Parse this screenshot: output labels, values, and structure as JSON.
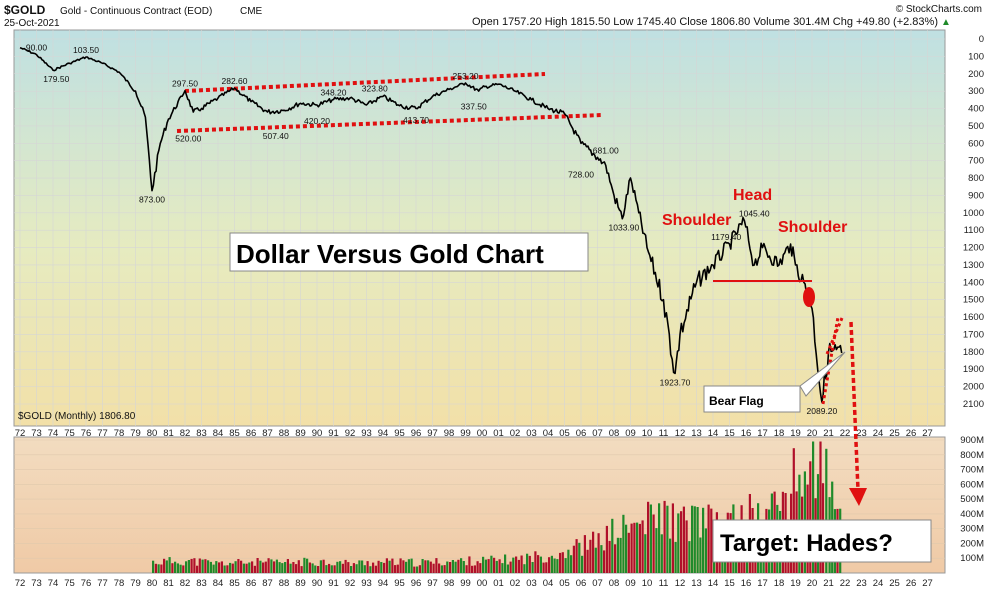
{
  "header": {
    "symbol": "$GOLD",
    "description": "Gold - Continuous Contract (EOD)",
    "exchange": "CME",
    "date": "25-Oct-2021",
    "watermark": "© StockCharts.com",
    "quote": "Open 1757.20  High 1815.50  Low 1745.40  Close 1806.80  Volume 301.4M  Chg +49.80 (+2.83%)",
    "quote_arrow": "▲"
  },
  "legend": {
    "label": "$GOLD (Monthly) 1806.80"
  },
  "annotations": {
    "title_box": "Dollar Versus Gold Chart",
    "head": "Head",
    "shoulder_left": "Shoulder",
    "shoulder_right": "Shoulder",
    "bear_flag": "Bear Flag",
    "target": "Target: Hades?"
  },
  "colors": {
    "price_line": "#000000",
    "trend_red": "#e01010",
    "vol_up": "#1f8a2a",
    "vol_down": "#b0102a",
    "panel_top_a": "#bfe0e0",
    "panel_top_b": "#f0e0a8",
    "vol_bg": "#f2d6b4"
  },
  "chart_data": {
    "type": "line",
    "series_inverted": true,
    "x_ticks": [
      "72",
      "73",
      "74",
      "75",
      "76",
      "77",
      "78",
      "79",
      "80",
      "81",
      "82",
      "83",
      "84",
      "85",
      "86",
      "87",
      "88",
      "89",
      "90",
      "91",
      "92",
      "93",
      "94",
      "95",
      "96",
      "97",
      "98",
      "99",
      "00",
      "01",
      "02",
      "03",
      "04",
      "05",
      "06",
      "07",
      "08",
      "09",
      "10",
      "11",
      "12",
      "13",
      "14",
      "15",
      "16",
      "17",
      "18",
      "19",
      "20",
      "21",
      "22",
      "23",
      "24",
      "25",
      "26",
      "27"
    ],
    "y_ticks": [
      0,
      100,
      200,
      300,
      400,
      500,
      600,
      700,
      800,
      900,
      1000,
      1100,
      1200,
      1300,
      1400,
      1500,
      1600,
      1700,
      1800,
      1900,
      2000,
      2100
    ],
    "ylim": [
      0,
      2200
    ],
    "price": [
      [
        1972.0,
        50
      ],
      [
        1973.0,
        90
      ],
      [
        1974.0,
        179.5
      ],
      [
        1975.0,
        140
      ],
      [
        1976.0,
        103.5
      ],
      [
        1977.0,
        140
      ],
      [
        1978.0,
        190
      ],
      [
        1979.0,
        300
      ],
      [
        1979.6,
        450
      ],
      [
        1980.0,
        873
      ],
      [
        1980.5,
        600
      ],
      [
        1981.0,
        460
      ],
      [
        1982.0,
        297.5
      ],
      [
        1982.5,
        420
      ],
      [
        1983.0,
        400
      ],
      [
        1984.0,
        340
      ],
      [
        1985.0,
        282.6
      ],
      [
        1986.0,
        360
      ],
      [
        1987.0,
        420
      ],
      [
        1988.0,
        410
      ],
      [
        1989.0,
        370
      ],
      [
        1990.0,
        380
      ],
      [
        1991.0,
        348.2
      ],
      [
        1992.0,
        340
      ],
      [
        1993.0,
        380
      ],
      [
        1994.0,
        330
      ],
      [
        1995.0,
        383.7
      ],
      [
        1996.0,
        400
      ],
      [
        1997.0,
        330
      ],
      [
        1998.0,
        290
      ],
      [
        1999.0,
        253.2
      ],
      [
        1999.8,
        300
      ],
      [
        2000.0,
        280
      ],
      [
        2001.0,
        260
      ],
      [
        2002.0,
        300
      ],
      [
        2003.0,
        350
      ],
      [
        2004.0,
        400
      ],
      [
        2005.0,
        430
      ],
      [
        2006.0,
        600
      ],
      [
        2007.0,
        681
      ],
      [
        2007.5,
        728
      ],
      [
        2008.0,
        900
      ],
      [
        2008.5,
        1033.9
      ],
      [
        2009.0,
        800
      ],
      [
        2009.5,
        1000
      ],
      [
        2010.0,
        1200
      ],
      [
        2011.0,
        1500
      ],
      [
        2011.7,
        1923.7
      ],
      [
        2012.0,
        1700
      ],
      [
        2013.0,
        1400
      ],
      [
        2014.0,
        1300
      ],
      [
        2015.0,
        1179.4
      ],
      [
        2015.9,
        1045.4
      ],
      [
        2016.5,
        1300
      ],
      [
        2017.0,
        1200
      ],
      [
        2018.0,
        1300
      ],
      [
        2018.7,
        1180
      ],
      [
        2019.0,
        1300
      ],
      [
        2019.5,
        1400
      ],
      [
        2020.0,
        1550
      ],
      [
        2020.6,
        2089.2
      ],
      [
        2021.0,
        1800
      ],
      [
        2021.8,
        1806.8
      ]
    ],
    "point_labels": [
      {
        "text": "90.00",
        "x": 1973.0,
        "y": 90
      },
      {
        "text": "179.50",
        "x": 1974.2,
        "y": 179.5
      },
      {
        "text": "103.50",
        "x": 1976.0,
        "y": 103.5
      },
      {
        "text": "873.00",
        "x": 1980.0,
        "y": 873
      },
      {
        "text": "297.50",
        "x": 1982.0,
        "y": 297.5
      },
      {
        "text": "520.00",
        "x": 1982.2,
        "y": 520
      },
      {
        "text": "282.60",
        "x": 1985.0,
        "y": 282.6
      },
      {
        "text": "507.40",
        "x": 1987.5,
        "y": 507.4
      },
      {
        "text": "348.20",
        "x": 1991.0,
        "y": 348.2
      },
      {
        "text": "420.20",
        "x": 1990.0,
        "y": 420.2
      },
      {
        "text": "323.80",
        "x": 1993.5,
        "y": 323.8
      },
      {
        "text": "413.70",
        "x": 1996.0,
        "y": 413.7
      },
      {
        "text": "253.20",
        "x": 1999.0,
        "y": 253.2
      },
      {
        "text": "337.50",
        "x": 1999.5,
        "y": 337.5
      },
      {
        "text": "728.00",
        "x": 2006.0,
        "y": 728
      },
      {
        "text": "681.00",
        "x": 2007.5,
        "y": 681
      },
      {
        "text": "1033.90",
        "x": 2008.6,
        "y": 1033.9
      },
      {
        "text": "1179.40",
        "x": 2014.8,
        "y": 1179.4
      },
      {
        "text": "1045.40",
        "x": 2016.5,
        "y": 1045.4
      },
      {
        "text": "1923.70",
        "x": 2011.7,
        "y": 1923.7
      },
      {
        "text": "2089.20",
        "x": 2020.6,
        "y": 2089.2
      }
    ],
    "volume": {
      "y_ticks": [
        "900M",
        "800M",
        "700M",
        "600M",
        "500M",
        "400M",
        "300M",
        "200M",
        "100M"
      ],
      "ylim": [
        0,
        900
      ],
      "values": [
        [
          1980,
          80
        ],
        [
          1982,
          90
        ],
        [
          1984,
          70
        ],
        [
          1986,
          80
        ],
        [
          1988,
          75
        ],
        [
          1990,
          85
        ],
        [
          1992,
          70
        ],
        [
          1994,
          80
        ],
        [
          1996,
          75
        ],
        [
          1998,
          85
        ],
        [
          2000,
          90
        ],
        [
          2002,
          100
        ],
        [
          2004,
          130
        ],
        [
          2005,
          160
        ],
        [
          2006,
          200
        ],
        [
          2007,
          230
        ],
        [
          2008,
          300
        ],
        [
          2009,
          330
        ],
        [
          2010,
          380
        ],
        [
          2011,
          420
        ],
        [
          2012,
          350
        ],
        [
          2013,
          400
        ],
        [
          2014,
          340
        ],
        [
          2015,
          360
        ],
        [
          2016,
          420
        ],
        [
          2017,
          400
        ],
        [
          2018,
          520
        ],
        [
          2019,
          680
        ],
        [
          2020,
          800
        ],
        [
          2020.6,
          880
        ],
        [
          2021,
          520
        ],
        [
          2021.8,
          380
        ]
      ]
    }
  }
}
